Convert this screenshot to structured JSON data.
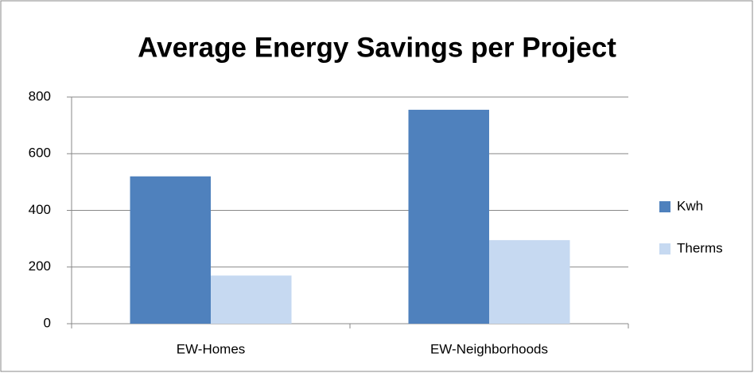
{
  "chart_data": {
    "type": "bar",
    "title": "Average Energy Savings per Project",
    "categories": [
      "EW-Homes",
      "EW-Neighborhoods"
    ],
    "series": [
      {
        "name": "Kwh",
        "color": "#4f81bd",
        "values": [
          520,
          755
        ]
      },
      {
        "name": "Therms",
        "color": "#c6d9f1",
        "values": [
          170,
          295
        ]
      }
    ],
    "ylim": [
      0,
      800
    ],
    "yticks": [
      0,
      200,
      400,
      600,
      800
    ],
    "grid": true,
    "legend": "right"
  }
}
